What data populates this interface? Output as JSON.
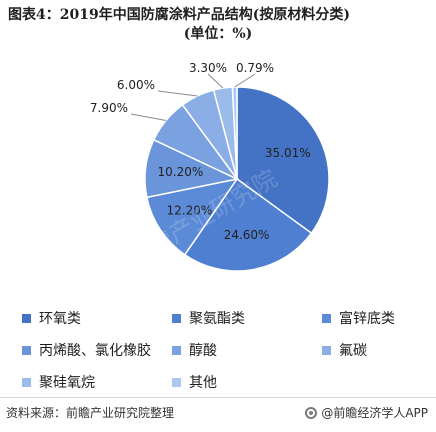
{
  "title": {
    "line1": "图表4：2019年中国防腐涂料产品结构(按原材料分类)",
    "line2": "(单位：%)"
  },
  "footer": {
    "source": "资料来源：前瞻产业研究院整理",
    "brand": "@前瞻经济学人APP"
  },
  "watermark_text": "前瞻产业研究院",
  "colors": {
    "slices": [
      "#4472c4",
      "#4f7fd0",
      "#5b8ad6",
      "#6a95db",
      "#7aa1e0",
      "#8aaee5",
      "#9bbbea",
      "#acc8ef"
    ]
  },
  "chart_data": {
    "type": "pie",
    "categories": [
      "环氧类",
      "聚氨酯类",
      "富锌底类",
      "丙烯酸、氯化橡胶",
      "醇酸",
      "氟碳",
      "聚硅氧烷",
      "其他"
    ],
    "values": [
      35.01,
      24.6,
      12.2,
      10.2,
      7.9,
      6.0,
      3.3,
      0.79
    ],
    "labels": [
      "35.01%",
      "24.60%",
      "12.20%",
      "10.20%",
      "7.90%",
      "6.00%",
      "3.30%",
      "0.79%"
    ],
    "legend_position": "bottom"
  }
}
